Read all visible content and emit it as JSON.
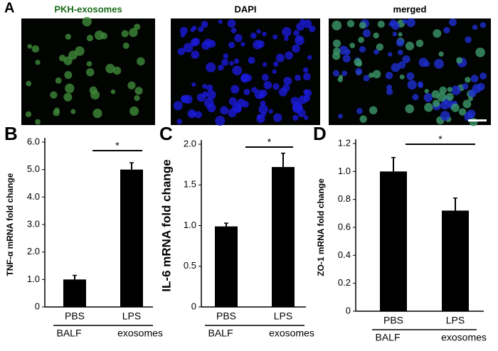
{
  "panel_a": {
    "label": "A",
    "images": [
      "PKH-exosomes",
      "DAPI",
      "merged"
    ]
  },
  "chart_data": [
    {
      "type": "bar",
      "panel_label": "B",
      "ylabel": "TNF-α mRNA fold change",
      "categories": [
        "PBS",
        "LPS"
      ],
      "values": [
        1.0,
        5.0
      ],
      "errors": [
        0.15,
        0.25
      ],
      "color": "#000000",
      "group_labels": [
        "BALF",
        "exosomes"
      ],
      "significance": "*",
      "ylim": [
        0,
        6
      ],
      "yticks": [
        0,
        {
          "value": 1,
          "label": "1.0"
        },
        {
          "value": 2,
          "label": "2.0"
        },
        {
          "value": 3,
          "label": "3.0"
        },
        {
          "value": 4,
          "label": "4.0"
        },
        {
          "value": 5,
          "label": "5.0"
        },
        {
          "value": 6,
          "label": "6.0"
        }
      ]
    },
    {
      "type": "bar",
      "panel_label": "C",
      "ylabel": "IL-6 mRNA fold change",
      "categories": [
        "PBS",
        "LPS"
      ],
      "values": [
        0.99,
        1.72
      ],
      "errors": [
        0.04,
        0.17
      ],
      "color": "#000000",
      "group_labels": [
        "BALF",
        "exosomes"
      ],
      "significance": "*",
      "ylim": [
        0,
        2
      ],
      "yticks": [
        0,
        0.5,
        {
          "value": 1,
          "label": "1.0"
        },
        1.5,
        {
          "value": 2,
          "label": "2.0"
        }
      ]
    },
    {
      "type": "bar",
      "panel_label": "D",
      "ylabel": "ZO-1 mRNA fold change",
      "categories": [
        "PBS",
        "LPS"
      ],
      "values": [
        1.0,
        0.72
      ],
      "errors": [
        0.1,
        0.09
      ],
      "color": "#000000",
      "group_labels": [
        "BALF",
        "exosomes"
      ],
      "significance": "*",
      "ylim": [
        0,
        1.2
      ],
      "yticks": [
        0,
        0.2,
        0.4,
        0.6,
        0.8,
        {
          "value": 1,
          "label": "1.0"
        },
        1.2
      ]
    }
  ]
}
